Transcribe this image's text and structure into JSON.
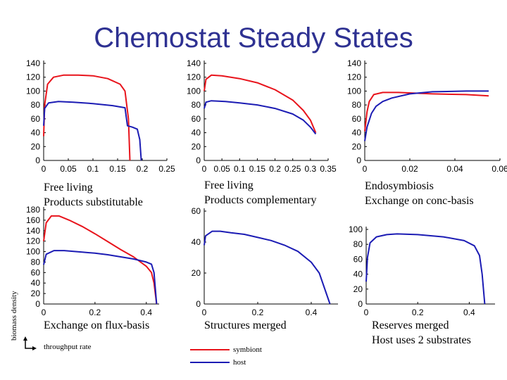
{
  "slide": {
    "title": "Chemostat Steady States",
    "y_axis_label": "biomass density",
    "x_axis_label": "throughput rate",
    "legend": [
      {
        "label": "symbiont",
        "color": "#e8141c"
      },
      {
        "label": "host",
        "color": "#1c1cb4"
      }
    ]
  },
  "panels": [
    {
      "id": "p1",
      "caption": [
        "Free living",
        "Products substitutable"
      ]
    },
    {
      "id": "p2",
      "caption": [
        "Free living",
        "Products complementary"
      ]
    },
    {
      "id": "p3",
      "caption": [
        "Endosymbiosis",
        "Exchange on conc-basis"
      ]
    },
    {
      "id": "p4",
      "caption": [
        "Exchange on flux-basis"
      ]
    },
    {
      "id": "p5",
      "caption": [
        "Structures merged"
      ]
    },
    {
      "id": "p6",
      "caption": [
        "Reserves merged",
        "Host uses 2 substrates"
      ]
    }
  ],
  "chart_data": [
    {
      "type": "line",
      "xlim": [
        0,
        0.25
      ],
      "ylim": [
        0,
        140
      ],
      "xticks": [
        "0",
        "0.05",
        "0.1",
        "0.15",
        "0.2",
        "0.25"
      ],
      "yticks": [
        "0",
        "20",
        "40",
        "60",
        "80",
        "100",
        "120",
        "140"
      ],
      "series": [
        {
          "name": "symbiont",
          "points": [
            [
              0,
              35
            ],
            [
              0.002,
              80
            ],
            [
              0.008,
              110
            ],
            [
              0.02,
              120
            ],
            [
              0.04,
              123
            ],
            [
              0.07,
              123
            ],
            [
              0.1,
              122
            ],
            [
              0.13,
              118
            ],
            [
              0.155,
              110
            ],
            [
              0.165,
              100
            ],
            [
              0.172,
              60
            ],
            [
              0.175,
              0
            ]
          ]
        },
        {
          "name": "host",
          "points": [
            [
              0,
              50
            ],
            [
              0.002,
              75
            ],
            [
              0.01,
              83
            ],
            [
              0.03,
              85
            ],
            [
              0.06,
              84
            ],
            [
              0.1,
              82
            ],
            [
              0.14,
              79
            ],
            [
              0.165,
              76
            ],
            [
              0.17,
              50
            ],
            [
              0.18,
              48
            ],
            [
              0.19,
              45
            ],
            [
              0.195,
              30
            ],
            [
              0.198,
              0
            ]
          ]
        }
      ]
    },
    {
      "type": "line",
      "xlim": [
        0,
        0.35
      ],
      "ylim": [
        0,
        140
      ],
      "xticks": [
        "0",
        "0.05",
        "0.1",
        "0.15",
        "0.2",
        "0.25",
        "0.3",
        "0.35"
      ],
      "yticks": [
        "0",
        "20",
        "40",
        "60",
        "80",
        "100",
        "120",
        "140"
      ],
      "series": [
        {
          "name": "symbiont",
          "points": [
            [
              0,
              100
            ],
            [
              0.005,
              117
            ],
            [
              0.02,
              123
            ],
            [
              0.05,
              122
            ],
            [
              0.1,
              118
            ],
            [
              0.15,
              112
            ],
            [
              0.2,
              102
            ],
            [
              0.25,
              87
            ],
            [
              0.28,
              72
            ],
            [
              0.3,
              58
            ],
            [
              0.315,
              40
            ]
          ]
        },
        {
          "name": "host",
          "points": [
            [
              0,
              75
            ],
            [
              0.005,
              84
            ],
            [
              0.02,
              86
            ],
            [
              0.06,
              85
            ],
            [
              0.1,
              83
            ],
            [
              0.15,
              80
            ],
            [
              0.2,
              75
            ],
            [
              0.25,
              67
            ],
            [
              0.28,
              58
            ],
            [
              0.3,
              48
            ],
            [
              0.315,
              38
            ]
          ]
        }
      ]
    },
    {
      "type": "line",
      "xlim": [
        0,
        0.06
      ],
      "ylim": [
        0,
        140
      ],
      "xticks": [
        "0",
        "0.02",
        "0.04",
        "0.06"
      ],
      "yticks": [
        "0",
        "20",
        "40",
        "60",
        "80",
        "100",
        "120",
        "140"
      ],
      "series": [
        {
          "name": "symbiont",
          "points": [
            [
              0,
              42
            ],
            [
              0.001,
              70
            ],
            [
              0.002,
              85
            ],
            [
              0.004,
              95
            ],
            [
              0.008,
              98
            ],
            [
              0.015,
              98
            ],
            [
              0.03,
              96
            ],
            [
              0.045,
              95
            ],
            [
              0.055,
              93
            ]
          ]
        },
        {
          "name": "host",
          "points": [
            [
              0,
              28
            ],
            [
              0.001,
              48
            ],
            [
              0.003,
              68
            ],
            [
              0.005,
              78
            ],
            [
              0.008,
              85
            ],
            [
              0.012,
              90
            ],
            [
              0.02,
              96
            ],
            [
              0.03,
              99
            ],
            [
              0.045,
              100
            ],
            [
              0.055,
              100
            ]
          ]
        }
      ]
    },
    {
      "type": "line",
      "xlim": [
        0,
        0.45
      ],
      "ylim": [
        0,
        180
      ],
      "xticks": [
        "0",
        "0.2",
        "0.4"
      ],
      "yticks": [
        "0",
        "20",
        "40",
        "60",
        "80",
        "100",
        "120",
        "140",
        "160",
        "180"
      ],
      "series": [
        {
          "name": "symbiont",
          "points": [
            [
              0,
              120
            ],
            [
              0.01,
              155
            ],
            [
              0.03,
              168
            ],
            [
              0.06,
              168
            ],
            [
              0.1,
              160
            ],
            [
              0.15,
              148
            ],
            [
              0.2,
              134
            ],
            [
              0.25,
              119
            ],
            [
              0.3,
              104
            ],
            [
              0.35,
              90
            ],
            [
              0.4,
              72
            ],
            [
              0.42,
              60
            ],
            [
              0.43,
              40
            ],
            [
              0.44,
              0
            ]
          ]
        },
        {
          "name": "host",
          "points": [
            [
              0,
              75
            ],
            [
              0.01,
              95
            ],
            [
              0.04,
              102
            ],
            [
              0.08,
              102
            ],
            [
              0.15,
              99
            ],
            [
              0.2,
              97
            ],
            [
              0.25,
              94
            ],
            [
              0.3,
              90
            ],
            [
              0.35,
              86
            ],
            [
              0.4,
              80
            ],
            [
              0.42,
              76
            ],
            [
              0.43,
              60
            ],
            [
              0.44,
              0
            ]
          ]
        }
      ]
    },
    {
      "type": "line",
      "xlim": [
        0,
        0.5
      ],
      "ylim": [
        0,
        60
      ],
      "xticks": [
        "0",
        "0.2",
        "0.4"
      ],
      "yticks": [
        "0",
        "20",
        "40",
        "60"
      ],
      "series": [
        {
          "name": "host",
          "points": [
            [
              0,
              38
            ],
            [
              0.005,
              44
            ],
            [
              0.03,
              47
            ],
            [
              0.06,
              47
            ],
            [
              0.1,
              46
            ],
            [
              0.15,
              45
            ],
            [
              0.2,
              43
            ],
            [
              0.25,
              41
            ],
            [
              0.3,
              38
            ],
            [
              0.35,
              34
            ],
            [
              0.4,
              27
            ],
            [
              0.43,
              20
            ],
            [
              0.45,
              10
            ],
            [
              0.47,
              0
            ]
          ]
        }
      ]
    },
    {
      "type": "line",
      "xlim": [
        0,
        0.5
      ],
      "ylim": [
        0,
        100
      ],
      "xticks": [
        "0",
        "0.2",
        "0.4"
      ],
      "yticks": [
        "0",
        "20",
        "40",
        "60",
        "80",
        "100"
      ],
      "series": [
        {
          "name": "host",
          "points": [
            [
              0,
              30
            ],
            [
              0.005,
              62
            ],
            [
              0.015,
              82
            ],
            [
              0.04,
              90
            ],
            [
              0.08,
              93
            ],
            [
              0.12,
              94
            ],
            [
              0.2,
              93
            ],
            [
              0.3,
              90
            ],
            [
              0.38,
              85
            ],
            [
              0.42,
              78
            ],
            [
              0.44,
              65
            ],
            [
              0.45,
              40
            ],
            [
              0.46,
              0
            ]
          ]
        }
      ]
    }
  ]
}
